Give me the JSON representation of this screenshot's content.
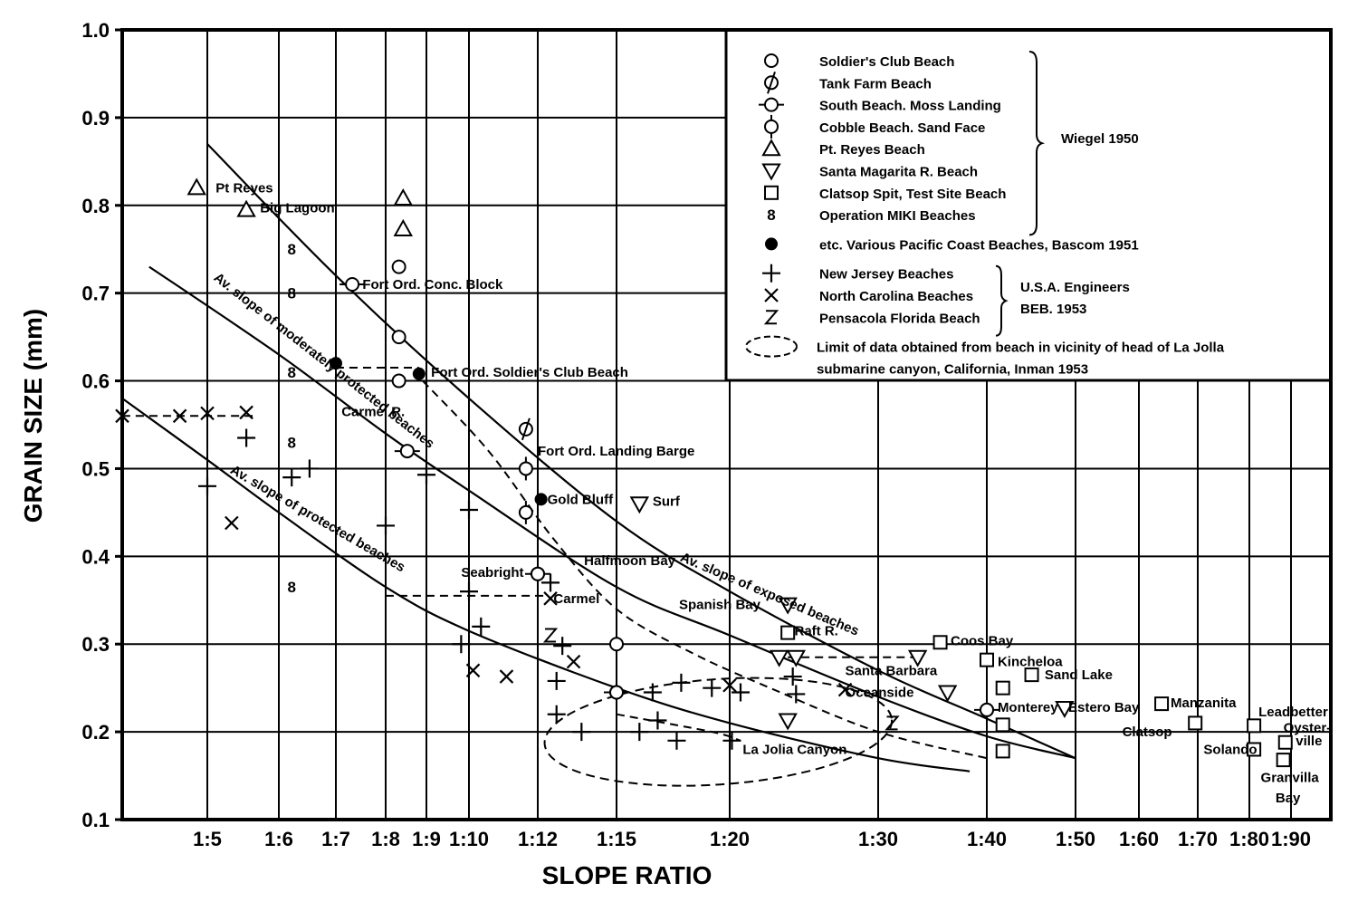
{
  "chart_data": {
    "type": "scatter",
    "xlabel": "SLOPE RATIO",
    "ylabel": "GRAIN SIZE (mm)",
    "x_scale": "reciprocal (tan of beach slope)",
    "x_ticks": [
      {
        "ratio": 5,
        "label": "1:5"
      },
      {
        "ratio": 6,
        "label": "1:6"
      },
      {
        "ratio": 7,
        "label": "1:7"
      },
      {
        "ratio": 8,
        "label": "1:8"
      },
      {
        "ratio": 9,
        "label": "1:9"
      },
      {
        "ratio": 10,
        "label": "1:10"
      },
      {
        "ratio": 12,
        "label": "1:12"
      },
      {
        "ratio": 15,
        "label": "1:15"
      },
      {
        "ratio": 20,
        "label": "1:20"
      },
      {
        "ratio": 30,
        "label": "1:30"
      },
      {
        "ratio": 40,
        "label": "1:40"
      },
      {
        "ratio": 50,
        "label": "1:50"
      },
      {
        "ratio": 60,
        "label": "1:60"
      },
      {
        "ratio": 70,
        "label": "1:70"
      },
      {
        "ratio": 80,
        "label": "1:80"
      },
      {
        "ratio": 90,
        "label": "1:90"
      }
    ],
    "y_ticks": [
      "0.1",
      "0.2",
      "0.3",
      "0.4",
      "0.5",
      "0.6",
      "0.7",
      "0.8",
      "0.9",
      "1.0"
    ],
    "ylim": [
      0.1,
      1.0
    ],
    "xlim_ratio": [
      4.3,
      110
    ],
    "grid": true,
    "legend_position": "top-right",
    "legend": {
      "groups": [
        {
          "citation": "Wiegel 1950",
          "entries": [
            {
              "marker": "circle",
              "label": "Soldier's Club Beach"
            },
            {
              "marker": "circle-tick-diag",
              "label": "Tank Farm Beach"
            },
            {
              "marker": "circle-tick-h",
              "label": "South Beach. Moss Landing"
            },
            {
              "marker": "circle-tick-v",
              "label": "Cobble Beach. Sand Face"
            },
            {
              "marker": "triangle-up",
              "label": "Pt. Reyes Beach"
            },
            {
              "marker": "triangle-down",
              "label": "Santa Magarita R. Beach"
            },
            {
              "marker": "square",
              "label": "Clatsop Spit, Test Site Beach"
            },
            {
              "marker": "eight",
              "label": "Operation MIKI Beaches"
            }
          ]
        },
        {
          "citation": "",
          "entries": [
            {
              "marker": "filled-circle",
              "label": "etc. Various Pacific Coast Beaches, Bascom 1951"
            }
          ]
        },
        {
          "citation_lines": [
            "U.S.A. Engineers",
            "BEB. 1953"
          ],
          "entries": [
            {
              "marker": "plus",
              "label": "New Jersey Beaches"
            },
            {
              "marker": "cross",
              "label": "North Carolina Beaches"
            },
            {
              "marker": "zee",
              "label": "Pensacola Florida Beach"
            }
          ]
        },
        {
          "citation": "",
          "entries": [
            {
              "marker": "ellipse-dashed",
              "label_lines": [
                "Limit of data obtained from beach in vicinity of head of La Jolla",
                "submarine canyon, California, Inman 1953"
              ]
            }
          ]
        }
      ]
    },
    "curves": [
      {
        "label": "Av. slope of exposed beaches",
        "points": [
          [
            5.0,
            0.87
          ],
          [
            7.0,
            0.72
          ],
          [
            10.0,
            0.58
          ],
          [
            15.0,
            0.44
          ],
          [
            20.0,
            0.36
          ],
          [
            30.0,
            0.27
          ],
          [
            40.0,
            0.215
          ],
          [
            50.0,
            0.17
          ]
        ]
      },
      {
        "label": "Av. slope of moderately protected beaches",
        "points": [
          [
            4.5,
            0.73
          ],
          [
            6.0,
            0.63
          ],
          [
            8.0,
            0.54
          ],
          [
            10.0,
            0.475
          ],
          [
            15.0,
            0.365
          ],
          [
            20.0,
            0.31
          ],
          [
            30.0,
            0.24
          ],
          [
            40.0,
            0.195
          ],
          [
            50.0,
            0.17
          ]
        ]
      },
      {
        "label": "Av. slope of protected beaches",
        "points": [
          [
            4.3,
            0.58
          ],
          [
            5.0,
            0.51
          ],
          [
            6.0,
            0.45
          ],
          [
            8.0,
            0.365
          ],
          [
            10.0,
            0.315
          ],
          [
            15.0,
            0.25
          ],
          [
            20.0,
            0.21
          ],
          [
            30.0,
            0.17
          ],
          [
            38.0,
            0.155
          ]
        ]
      }
    ],
    "dashed_lines": [
      {
        "points": [
          [
            4.3,
            0.56
          ],
          [
            5.6,
            0.56
          ]
        ],
        "label": ""
      },
      {
        "points": [
          [
            7.0,
            0.615
          ],
          [
            8.8,
            0.615
          ]
        ],
        "label": ""
      },
      {
        "points": [
          [
            8.0,
            0.355
          ],
          [
            12.3,
            0.355
          ]
        ],
        "label": ""
      },
      {
        "points": [
          [
            8.9,
            0.6
          ],
          [
            10.5,
            0.52
          ],
          [
            12.5,
            0.42
          ],
          [
            15.0,
            0.34
          ],
          [
            18.0,
            0.29
          ],
          [
            22.0,
            0.25
          ],
          [
            30.0,
            0.2
          ],
          [
            40.0,
            0.17
          ]
        ],
        "label": ""
      },
      {
        "points": [
          [
            23.0,
            0.285
          ],
          [
            33.0,
            0.285
          ]
        ],
        "label": ""
      },
      {
        "points": [
          [
            15.0,
            0.22
          ],
          [
            19.0,
            0.2
          ],
          [
            20.5,
            0.19
          ]
        ],
        "label": ""
      }
    ],
    "series": [
      {
        "name": "Soldier's Club Beach",
        "marker": "circle",
        "points": [
          [
            8.3,
            0.73
          ],
          [
            8.3,
            0.65
          ],
          [
            8.3,
            0.6
          ],
          [
            15.0,
            0.3
          ],
          [
            15.0,
            0.245
          ],
          [
            12.0,
            0.38
          ],
          [
            40.0,
            0.225
          ]
        ]
      },
      {
        "name": "Tank Farm Beach",
        "marker": "circle-tick-diag",
        "points": [
          [
            11.6,
            0.545
          ]
        ]
      },
      {
        "name": "South Beach. Moss Landing",
        "marker": "circle-tick-h",
        "points": [
          [
            7.3,
            0.71
          ],
          [
            8.5,
            0.52
          ],
          [
            12.0,
            0.38
          ],
          [
            15.0,
            0.245
          ],
          [
            40.0,
            0.225
          ]
        ]
      },
      {
        "name": "Cobble Beach. Sand Face",
        "marker": "circle-tick-v",
        "points": [
          [
            11.6,
            0.5
          ],
          [
            11.6,
            0.45
          ]
        ]
      },
      {
        "name": "Pt. Reyes Beach",
        "marker": "triangle-up",
        "points": [
          [
            4.9,
            0.82
          ],
          [
            5.5,
            0.795
          ],
          [
            8.4,
            0.808
          ],
          [
            8.4,
            0.773
          ]
        ]
      },
      {
        "name": "Santa Magarita R. Beach",
        "marker": "triangle-down",
        "points": [
          [
            15.8,
            0.46
          ],
          [
            23.0,
            0.345
          ],
          [
            22.5,
            0.285
          ],
          [
            23.5,
            0.285
          ],
          [
            33.0,
            0.285
          ],
          [
            35.7,
            0.245
          ],
          [
            23.0,
            0.213
          ],
          [
            48.5,
            0.227
          ]
        ]
      },
      {
        "name": "Clatsop Spit, Test Site Beach",
        "marker": "square",
        "points": [
          [
            23.0,
            0.313
          ],
          [
            35.0,
            0.302
          ],
          [
            40.0,
            0.282
          ],
          [
            41.5,
            0.25
          ],
          [
            44.5,
            0.265
          ],
          [
            41.5,
            0.208
          ],
          [
            41.5,
            0.178
          ],
          [
            63.5,
            0.232
          ],
          [
            69.5,
            0.21
          ],
          [
            81.0,
            0.207
          ],
          [
            81.0,
            0.18
          ],
          [
            88.5,
            0.188
          ],
          [
            88.0,
            0.168
          ]
        ]
      },
      {
        "name": "Operation MIKI Beaches",
        "marker": "eight",
        "points": [
          [
            6.2,
            0.75
          ],
          [
            6.2,
            0.7
          ],
          [
            6.2,
            0.61
          ],
          [
            6.2,
            0.53
          ],
          [
            6.2,
            0.365
          ]
        ]
      },
      {
        "name": "etc. Various Pacific Coast Beaches, Bascom 1951",
        "marker": "filled-circle",
        "points": [
          [
            7.0,
            0.62
          ],
          [
            8.8,
            0.608
          ],
          [
            12.1,
            0.465
          ]
        ]
      },
      {
        "name": "New Jersey Beaches",
        "marker": "plus",
        "points": [
          [
            5.0,
            0.48
          ],
          [
            5.5,
            0.535
          ],
          [
            6.2,
            0.49
          ],
          [
            6.5,
            0.5
          ],
          [
            8.0,
            0.435
          ],
          [
            9.0,
            0.493
          ],
          [
            10.0,
            0.453
          ],
          [
            10.0,
            0.36
          ],
          [
            10.3,
            0.32
          ],
          [
            9.8,
            0.3
          ],
          [
            12.4,
            0.37
          ],
          [
            12.6,
            0.258
          ],
          [
            12.8,
            0.298
          ],
          [
            12.6,
            0.22
          ],
          [
            13.5,
            0.2
          ],
          [
            15.8,
            0.2
          ],
          [
            16.3,
            0.245
          ],
          [
            16.5,
            0.213
          ],
          [
            17.3,
            0.19
          ],
          [
            17.5,
            0.256
          ],
          [
            19.0,
            0.25
          ],
          [
            20.5,
            0.245
          ],
          [
            20.1,
            0.19
          ],
          [
            23.3,
            0.263
          ],
          [
            23.5,
            0.243
          ]
        ]
      },
      {
        "name": "North Carolina Beaches",
        "marker": "cross",
        "points": [
          [
            4.3,
            0.56
          ],
          [
            4.75,
            0.56
          ],
          [
            5.0,
            0.563
          ],
          [
            5.5,
            0.564
          ],
          [
            5.3,
            0.438
          ],
          [
            10.1,
            0.27
          ],
          [
            11.0,
            0.263
          ],
          [
            12.4,
            0.352
          ],
          [
            13.2,
            0.28
          ],
          [
            20.0,
            0.253
          ],
          [
            27.0,
            0.248
          ]
        ]
      },
      {
        "name": "Pensacola Florida Beach",
        "marker": "zee",
        "points": [
          [
            12.4,
            0.31
          ],
          [
            31.0,
            0.21
          ]
        ]
      }
    ],
    "annotations": [
      {
        "text": "Pt Reyes",
        "ratio": 5.1,
        "y": 0.82
      },
      {
        "text": "Big Lagoon",
        "ratio": 5.7,
        "y": 0.797
      },
      {
        "text": "Fort Ord. Conc. Block",
        "ratio": 7.5,
        "y": 0.71
      },
      {
        "text": "Fort Ord. Soldier's Club Beach",
        "ratio": 9.1,
        "y": 0.61
      },
      {
        "text": "Carmel R.",
        "ratio": 7.1,
        "y": 0.565
      },
      {
        "text": "Fort Ord. Landing Barge",
        "ratio": 12.0,
        "y": 0.52
      },
      {
        "text": "Gold Bluff",
        "ratio": 12.3,
        "y": 0.465
      },
      {
        "text": "Surf",
        "ratio": 16.3,
        "y": 0.463
      },
      {
        "text": "Halfmoon Bay",
        "ratio": 13.6,
        "y": 0.395
      },
      {
        "text": "Seabright",
        "ratio": 9.8,
        "y": 0.382
      },
      {
        "text": "Carmel",
        "ratio": 12.5,
        "y": 0.352
      },
      {
        "text": "Spanish Bay",
        "ratio": 17.4,
        "y": 0.345
      },
      {
        "text": "Raft R.",
        "ratio": 23.4,
        "y": 0.315
      },
      {
        "text": "Coos Bay",
        "ratio": 36.0,
        "y": 0.304
      },
      {
        "text": "Santa Barbara",
        "ratio": 27.0,
        "y": 0.27
      },
      {
        "text": "Oceanside",
        "ratio": 27.0,
        "y": 0.245
      },
      {
        "text": "Kincheloa",
        "ratio": 41.0,
        "y": 0.28
      },
      {
        "text": "Sand Lake",
        "ratio": 46.0,
        "y": 0.265
      },
      {
        "text": "Monterey",
        "ratio": 41.0,
        "y": 0.228
      },
      {
        "text": "Estero Bay",
        "ratio": 49.0,
        "y": 0.228
      },
      {
        "text": "Manzanita",
        "ratio": 65.0,
        "y": 0.233
      },
      {
        "text": "Clatsop",
        "ratio": 57.0,
        "y": 0.2
      },
      {
        "text": "Solando",
        "ratio": 71.0,
        "y": 0.18
      },
      {
        "text": "Leadbetter",
        "ratio": 82.0,
        "y": 0.223
      },
      {
        "text": "Oyster-",
        "ratio": 88.0,
        "y": 0.205
      },
      {
        "text": "ville",
        "ratio": 92.0,
        "y": 0.19
      },
      {
        "text": "Granvilla",
        "ratio": 82.5,
        "y": 0.148
      },
      {
        "text": "Bay",
        "ratio": 86.0,
        "y": 0.125
      },
      {
        "text": "La Jolia Canyon",
        "ratio": 20.6,
        "y": 0.18
      },
      {
        "text": "Av. slope of exposed beaches",
        "ratio": 17.5,
        "y": 0.4,
        "angle": 23
      },
      {
        "text": "Av. slope of moderately protected beaches",
        "ratio": 5.1,
        "y": 0.72,
        "angle": 38
      },
      {
        "text": "Av. slope of protected beaches",
        "ratio": 5.3,
        "y": 0.5,
        "angle": 30
      }
    ],
    "ellipse_region": {
      "cx_ratio": 18.6,
      "cy": 0.2,
      "rx_ratio_lo": 12.2,
      "rx_ratio_hi": 31.0,
      "ry": 0.06
    }
  }
}
